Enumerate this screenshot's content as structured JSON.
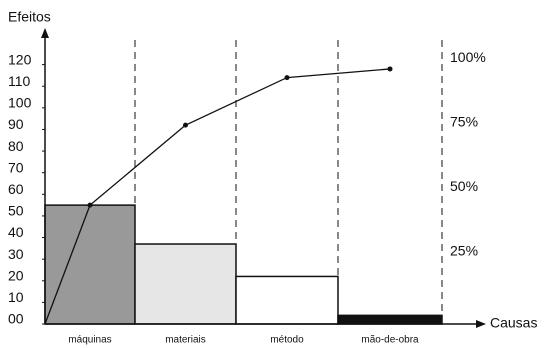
{
  "chart_data": {
    "type": "pareto",
    "ylabel": "Efeitos",
    "xlabel": "Causas",
    "categories": [
      "máquinas",
      "materiais",
      "método",
      "mão-de-obra"
    ],
    "values": [
      55,
      37,
      22,
      4
    ],
    "colors": [
      "#999999",
      "#e6e6e6",
      "#ffffff",
      "#111111"
    ],
    "cumulative": [
      55,
      92,
      114,
      118
    ],
    "ylim": [
      0,
      130
    ],
    "yticks": [
      {
        "value": 0,
        "label": "00"
      },
      10,
      20,
      30,
      40,
      50,
      60,
      70,
      80,
      90,
      100,
      110,
      120
    ],
    "y2lim": [
      -3,
      106
    ],
    "y2ticks": [
      {
        "value": 25,
        "label": "25%"
      },
      {
        "value": 50,
        "label": "50%"
      },
      {
        "value": 75,
        "label": "75%"
      },
      {
        "value": 100,
        "label": "100%"
      }
    ]
  }
}
